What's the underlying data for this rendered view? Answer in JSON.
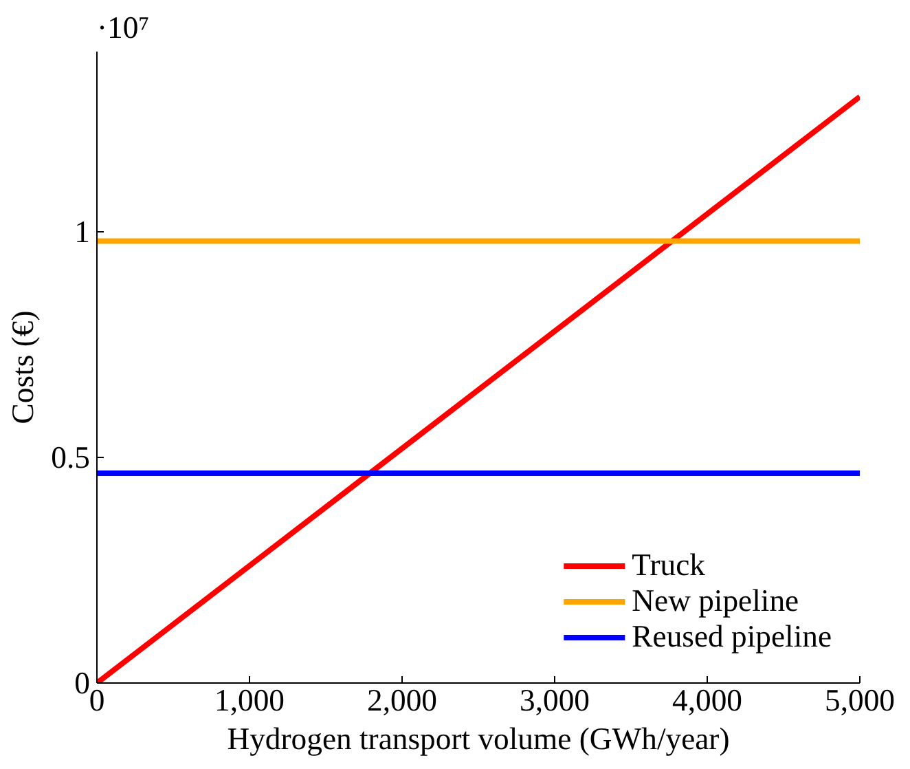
{
  "chart_data": {
    "type": "line",
    "xlabel": "Hydrogen transport volume (GWh/year)",
    "ylabel": "Costs (€)",
    "annotations": [
      "·10⁷"
    ],
    "x": [
      0,
      5000
    ],
    "xlim": [
      0,
      5000
    ],
    "ylim": [
      0,
      1.4
    ],
    "xticks": [
      0,
      {
        "value": 1000,
        "label": "1,000"
      },
      {
        "value": 2000,
        "label": "2,000"
      },
      {
        "value": 3000,
        "label": "3,000"
      },
      {
        "value": 4000,
        "label": "4,000"
      },
      {
        "value": 5000,
        "label": "5,000"
      }
    ],
    "yticks": [
      0,
      0.5,
      1
    ],
    "grid": false,
    "legend": "bottom right",
    "marker": "none",
    "line_style": "solid",
    "series": [
      {
        "name": "Truck",
        "color": "#ff0000",
        "values": [
          0,
          1.3
        ]
      },
      {
        "name": "New pipeline",
        "color": "#ffa500",
        "values": [
          0.98,
          0.98
        ]
      },
      {
        "name": "Reused pipeline",
        "color": "#0000ff",
        "values": [
          0.465,
          0.465
        ]
      }
    ]
  }
}
